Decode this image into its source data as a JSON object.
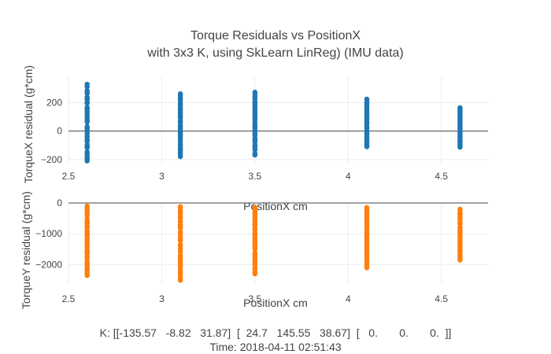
{
  "chart_data": {
    "type": "scatter",
    "title_line1": "Torque Residuals vs PositionX",
    "title_line2": "with 3x3 K, using SkLearn LinReg) (IMU data)",
    "footer_line1": "K: [[-135.57   -8.82   31.87]  [  24.7   145.55   38.67]  [   0.       0.       0.  ]]",
    "footer_line2": "Time: 2018-04-11 02:51:43",
    "subplots": [
      {
        "xlabel": "PositionX cm",
        "ylabel": "TorqueX residual (g*cm)",
        "xlim": [
          2.5,
          4.75
        ],
        "ylim": [
          -240,
          380
        ],
        "xticks": [
          "2.5",
          "3",
          "3.5",
          "4",
          "4.5"
        ],
        "yticks": [
          "−200",
          "0",
          "200"
        ],
        "ytick_values": [
          -200,
          0,
          200
        ],
        "color": "#1f77b4",
        "series": [
          {
            "x": 2.6,
            "ymin": -210,
            "ymax": 330
          },
          {
            "x": 3.1,
            "ymin": -180,
            "ymax": 265
          },
          {
            "x": 3.5,
            "ymin": -170,
            "ymax": 275
          },
          {
            "x": 4.1,
            "ymin": -110,
            "ymax": 225
          },
          {
            "x": 4.6,
            "ymin": -115,
            "ymax": 170
          }
        ]
      },
      {
        "xlabel": "PositionX cm",
        "ylabel": "TorqueY residual (g*cm)",
        "xlim": [
          2.5,
          4.75
        ],
        "ylim": [
          -2600,
          0
        ],
        "xticks": [
          "2.5",
          "3",
          "3.5",
          "4",
          "4.5"
        ],
        "yticks": [
          "0",
          "−1000",
          "−2000"
        ],
        "ytick_values": [
          0,
          -1000,
          -2000
        ],
        "color": "#ff7f0e",
        "series": [
          {
            "x": 2.6,
            "ymin": -2350,
            "ymax": -100
          },
          {
            "x": 3.1,
            "ymin": -2550,
            "ymax": -120
          },
          {
            "x": 3.5,
            "ymin": -2300,
            "ymax": -130
          },
          {
            "x": 4.1,
            "ymin": -2100,
            "ymax": -150
          },
          {
            "x": 4.6,
            "ymin": -1850,
            "ymax": -200
          }
        ]
      }
    ]
  }
}
